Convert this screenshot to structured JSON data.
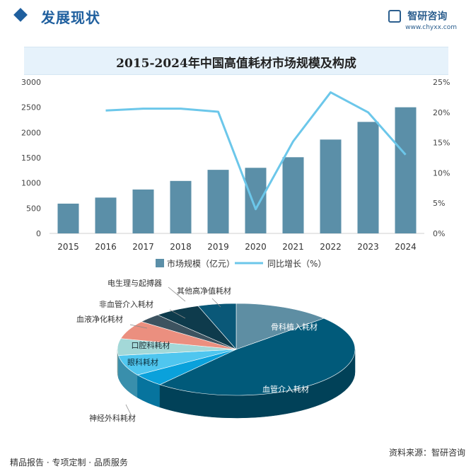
{
  "header": {
    "section_title": "发展现状",
    "brand_name": "智研咨询",
    "brand_url": "www.chyxx.com"
  },
  "chart_title": "2015-2024年中国高值耗材市场规模及构成",
  "chart_data": [
    {
      "type": "bar",
      "title": "2015-2024年中国高值耗材市场规模及构成",
      "categories": [
        "2015",
        "2016",
        "2017",
        "2018",
        "2019",
        "2020",
        "2021",
        "2022",
        "2023",
        "2024"
      ],
      "series": [
        {
          "name": "市场规模（亿元）",
          "type": "bar",
          "axis": "left",
          "color": "#5b8fa8",
          "values": [
            590,
            710,
            870,
            1040,
            1260,
            1300,
            1510,
            1860,
            2210,
            2500
          ]
        },
        {
          "name": "同比增长（%）",
          "type": "line",
          "axis": "right",
          "color": "#6cc7ea",
          "values": [
            null,
            20.3,
            20.6,
            20.6,
            20.1,
            4.0,
            15.2,
            23.3,
            20.0,
            13.0
          ]
        }
      ],
      "ylim_left": [
        0,
        3000
      ],
      "ylim_right": [
        0,
        25
      ],
      "yticks_left": [
        "0",
        "500",
        "1000",
        "1500",
        "2000",
        "2500",
        "3000"
      ],
      "yticks_right": [
        "0%",
        "5%",
        "10%",
        "15%",
        "20%",
        "25%"
      ],
      "legend_position": "bottom",
      "grid": false
    },
    {
      "type": "pie",
      "slices": [
        {
          "label": "骨科植入耗材",
          "value": 13.2,
          "color": "#5e8ea3"
        },
        {
          "label": "血管介入耗材",
          "value": 47.9,
          "color": "#015a7a"
        },
        {
          "label": "神经外科耗材",
          "value": 4.5,
          "color": "#0aa1db"
        },
        {
          "label": "眼科耗材",
          "value": 7.3,
          "color": "#4fc6ef"
        },
        {
          "label": "口腔科耗材",
          "value": 5.9,
          "color": "#a3d8d8"
        },
        {
          "label": "血液净化耗材",
          "value": 6.5,
          "color": "#eb8f7f"
        },
        {
          "label": "非血管介入耗材",
          "value": 3.2,
          "color": "#3d5360"
        },
        {
          "label": "电生理与起搏器",
          "value": 6.3,
          "color": "#0e3b4c"
        },
        {
          "label": "其他高净值耗材",
          "value": 5.2,
          "color": "#0a5878"
        }
      ]
    }
  ],
  "footer": {
    "left": "精品报告 · 专项定制 · 品质服务",
    "source": "资料来源：智研咨询"
  }
}
